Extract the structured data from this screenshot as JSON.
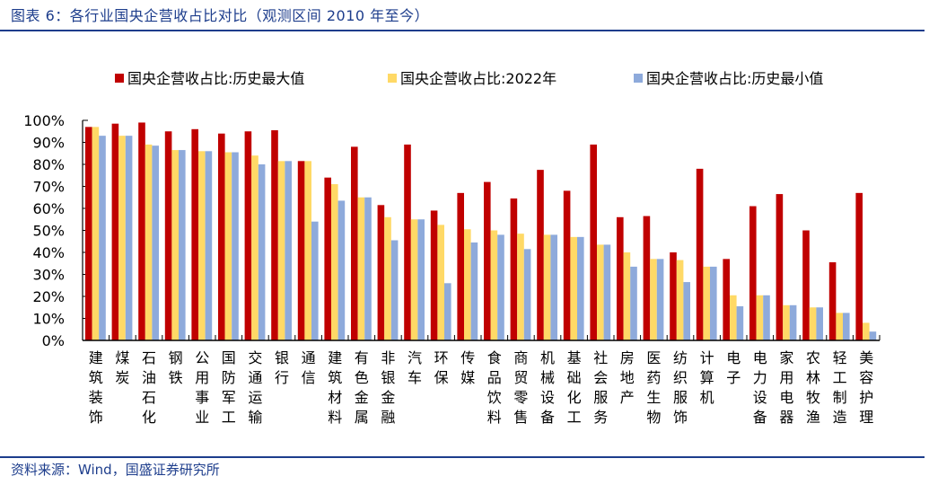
{
  "title": "图表 6：各行业国央企营收占比对比（观测区间 2010 年至今）",
  "source": "资料来源：Wind，国盛证券研究所",
  "chart_data": {
    "type": "bar",
    "title": "各行业国央企营收占比对比（观测区间 2010 年至今）",
    "xlabel": "",
    "ylabel": "",
    "ylim": [
      0,
      100
    ],
    "yticks": [
      "0%",
      "10%",
      "20%",
      "30%",
      "40%",
      "50%",
      "60%",
      "70%",
      "80%",
      "90%",
      "100%"
    ],
    "legend_position": "top",
    "categories": [
      "建筑装饰",
      "煤炭",
      "石油石化",
      "钢铁",
      "公用事业",
      "国防军工",
      "交通运输",
      "银行",
      "通信",
      "建筑材料",
      "有色金属",
      "非银金融",
      "汽车",
      "环保",
      "传媒",
      "食品饮料",
      "商贸零售",
      "机械设备",
      "基础化工",
      "社会服务",
      "房地产",
      "医药生物",
      "纺织服饰",
      "计算机",
      "电子",
      "电力设备",
      "家用电器",
      "农林牧渔",
      "轻工制造",
      "美容护理"
    ],
    "series": [
      {
        "name": "国央企营收占比:历史最大值",
        "color": "#c00000",
        "values": [
          97,
          98.5,
          99,
          95,
          96,
          94,
          95,
          95.5,
          81.5,
          74,
          88,
          61.5,
          89,
          59,
          67,
          72,
          64.5,
          77.5,
          68,
          89,
          56,
          56.5,
          40,
          78,
          37,
          61,
          66.5,
          50,
          35.5,
          67
        ]
      },
      {
        "name": "国央企营收占比:2022年",
        "color": "#ffd966",
        "values": [
          97,
          93,
          89,
          86.5,
          86,
          85.5,
          84,
          81.5,
          81.5,
          71,
          65,
          56,
          55,
          52.5,
          50.5,
          50,
          48.5,
          48,
          47,
          43.5,
          40,
          37,
          36.5,
          33.5,
          20.5,
          20.5,
          16,
          15,
          12.5,
          8
        ]
      },
      {
        "name": "国央企营收占比:历史最小值",
        "color": "#8eaadb",
        "values": [
          93,
          93,
          88.5,
          86.5,
          86,
          85.5,
          80,
          81.5,
          54,
          63.5,
          65,
          45.5,
          55,
          26,
          44.5,
          48,
          41.5,
          48,
          47,
          43.5,
          33.5,
          37,
          26.5,
          33.5,
          15.5,
          20.5,
          16,
          15,
          12.5,
          4
        ]
      }
    ]
  }
}
